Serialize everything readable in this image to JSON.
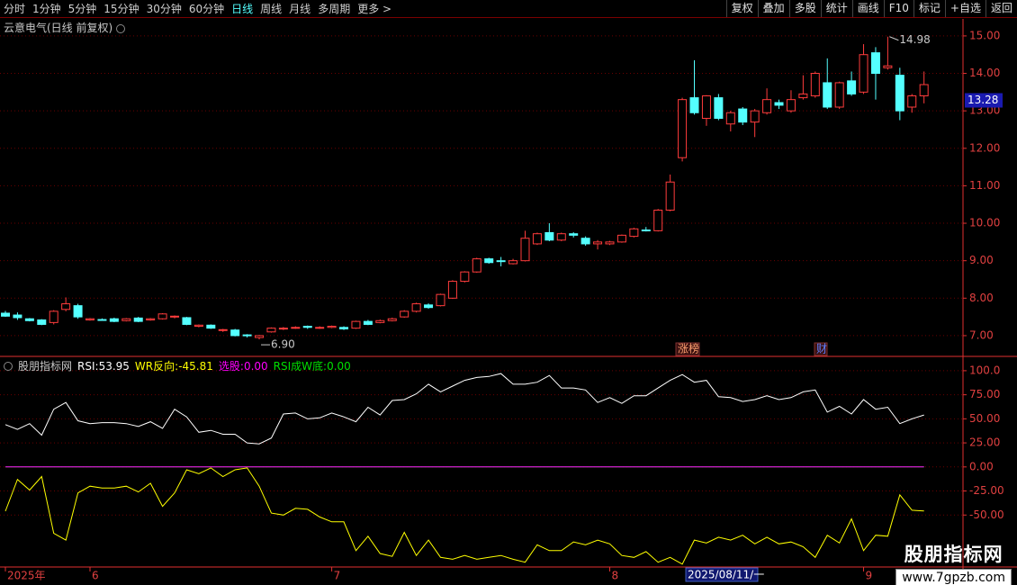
{
  "toolbar": {
    "periods": [
      "分时",
      "1分钟",
      "5分钟",
      "15分钟",
      "30分钟",
      "60分钟",
      "日线",
      "周线",
      "月线",
      "多周期",
      "更多 >"
    ],
    "active_index": 6,
    "tools": [
      "复权",
      "叠加",
      "多股",
      "统计",
      "画线",
      "F10",
      "标记",
      "+自选",
      "返回"
    ]
  },
  "watermark": {
    "title": "股朋指标网",
    "url": "www.7gpzb.com"
  },
  "chart_data": [
    {
      "type": "candlestick",
      "title": "云意电气(日线 前复权)",
      "up_color": "#ff3c3c",
      "down_color": "#54ffff",
      "categories": [
        "2025年",
        null,
        null,
        null,
        null,
        null,
        null,
        "6",
        null,
        null,
        null,
        null,
        null,
        null,
        null,
        null,
        null,
        null,
        null,
        null,
        null,
        null,
        null,
        null,
        null,
        null,
        null,
        "7",
        null,
        null,
        null,
        null,
        null,
        null,
        null,
        null,
        null,
        null,
        null,
        null,
        null,
        null,
        null,
        null,
        null,
        null,
        null,
        null,
        null,
        null,
        "8",
        null,
        null,
        null,
        null,
        null,
        null,
        null,
        null,
        null,
        null,
        null,
        null,
        null,
        null,
        null,
        null,
        null,
        null,
        null,
        null,
        "9",
        null,
        null,
        null,
        null,
        null
      ],
      "open": [
        7.6,
        7.55,
        7.45,
        7.42,
        7.35,
        7.7,
        7.8,
        7.42,
        7.43,
        7.45,
        7.4,
        7.47,
        7.42,
        7.45,
        7.5,
        7.48,
        7.25,
        7.28,
        7.15,
        7.15,
        7.02,
        6.95,
        7.1,
        7.18,
        7.2,
        7.25,
        7.2,
        7.22,
        7.22,
        7.2,
        7.38,
        7.35,
        7.4,
        7.5,
        7.65,
        7.82,
        7.8,
        8.0,
        8.45,
        8.7,
        9.05,
        9.0,
        8.92,
        9.0,
        9.45,
        9.75,
        9.55,
        9.72,
        9.6,
        9.45,
        9.45,
        9.5,
        9.65,
        9.82,
        9.8,
        10.35,
        11.75,
        13.35,
        12.8,
        13.35,
        12.65,
        13.05,
        12.7,
        12.95,
        13.22,
        13.0,
        13.35,
        13.4,
        13.75,
        13.1,
        13.8,
        13.5,
        14.55,
        14.15,
        13.95,
        13.1,
        13.4
      ],
      "high": [
        7.66,
        7.62,
        7.47,
        7.44,
        7.68,
        8.02,
        7.85,
        7.47,
        7.46,
        7.48,
        7.47,
        7.5,
        7.47,
        7.6,
        7.54,
        7.5,
        7.3,
        7.3,
        7.18,
        7.18,
        7.04,
        7.02,
        7.22,
        7.23,
        7.25,
        7.27,
        7.25,
        7.27,
        7.25,
        7.4,
        7.42,
        7.43,
        7.48,
        7.68,
        7.88,
        7.86,
        8.12,
        8.48,
        8.72,
        9.08,
        9.08,
        9.1,
        9.05,
        9.8,
        9.75,
        10.0,
        9.75,
        9.76,
        9.65,
        9.55,
        9.53,
        9.7,
        9.88,
        9.9,
        10.38,
        11.3,
        13.35,
        14.35,
        13.42,
        13.45,
        13.0,
        13.1,
        13.05,
        13.6,
        13.3,
        13.55,
        13.95,
        14.05,
        14.4,
        13.78,
        14.05,
        14.78,
        14.7,
        14.98,
        14.15,
        13.45,
        14.05
      ],
      "low": [
        7.5,
        7.42,
        7.38,
        7.28,
        7.3,
        7.65,
        7.45,
        7.4,
        7.4,
        7.36,
        7.38,
        7.36,
        7.4,
        7.43,
        7.46,
        7.28,
        7.22,
        7.18,
        7.1,
        6.98,
        6.95,
        6.9,
        7.08,
        7.15,
        7.18,
        7.18,
        7.18,
        7.2,
        7.15,
        7.18,
        7.28,
        7.33,
        7.38,
        7.48,
        7.62,
        7.72,
        7.78,
        7.98,
        8.42,
        8.68,
        8.92,
        8.85,
        8.9,
        8.98,
        9.42,
        9.52,
        9.52,
        9.62,
        9.4,
        9.3,
        9.42,
        9.48,
        9.62,
        9.78,
        9.78,
        10.32,
        11.65,
        12.9,
        12.6,
        12.75,
        12.45,
        12.62,
        12.3,
        12.9,
        13.05,
        12.95,
        13.3,
        13.35,
        13.05,
        13.05,
        13.4,
        13.45,
        13.3,
        14.1,
        12.75,
        12.95,
        13.2
      ],
      "close": [
        7.52,
        7.48,
        7.4,
        7.3,
        7.65,
        7.85,
        7.5,
        7.45,
        7.42,
        7.38,
        7.45,
        7.38,
        7.45,
        7.58,
        7.52,
        7.3,
        7.28,
        7.2,
        7.16,
        7.0,
        7.0,
        7.0,
        7.2,
        7.2,
        7.22,
        7.22,
        7.22,
        7.25,
        7.18,
        7.38,
        7.3,
        7.4,
        7.45,
        7.65,
        7.85,
        7.75,
        8.1,
        8.45,
        8.7,
        9.05,
        8.95,
        8.98,
        9.0,
        9.6,
        9.72,
        9.55,
        9.72,
        9.68,
        9.45,
        9.5,
        9.5,
        9.68,
        9.85,
        9.8,
        10.35,
        11.1,
        13.3,
        12.95,
        13.4,
        12.8,
        12.95,
        12.7,
        13.0,
        13.3,
        13.15,
        13.3,
        13.45,
        14.0,
        13.1,
        13.75,
        13.45,
        14.5,
        14.0,
        14.2,
        13.0,
        13.4,
        13.7
      ],
      "ylim": [
        6.47,
        15.43
      ],
      "yticks": [
        {
          "value": 7,
          "label": "7.00"
        },
        {
          "value": 8,
          "label": "8.00"
        },
        {
          "value": 9,
          "label": "9.00"
        },
        {
          "value": 10,
          "label": "10.00"
        },
        {
          "value": 11,
          "label": "11.00"
        },
        {
          "value": 12,
          "label": "12.00"
        },
        {
          "value": 13,
          "label": "13.00"
        },
        {
          "value": 14,
          "label": "14.00"
        },
        {
          "value": 15,
          "label": "15.00"
        }
      ],
      "grid": true,
      "extreme_labels": [
        {
          "value": 6.9,
          "label": "6.90"
        },
        {
          "value": 14.98,
          "label": "14.98"
        }
      ],
      "price_tag": {
        "value": 13.28,
        "label": "13.28"
      },
      "badges": [
        "涨榜",
        "财"
      ],
      "cursor_date": "2025/08/11/一"
    },
    {
      "type": "line",
      "title": "股朋指标网",
      "ylim": [
        -104,
        113
      ],
      "yticks": [
        {
          "value": 100,
          "label": "100.0"
        },
        {
          "value": 75,
          "label": "75.00"
        },
        {
          "value": 50,
          "label": "50.00"
        },
        {
          "value": 25,
          "label": "25.00"
        },
        {
          "value": 0,
          "label": "0.00"
        },
        {
          "value": -25,
          "label": "-25.00"
        },
        {
          "value": -50,
          "label": "-50.00"
        }
      ],
      "series": [
        {
          "name": "RSI",
          "color": "#ffffff",
          "values": [
            44,
            39,
            45,
            33,
            60,
            67,
            48,
            45,
            46,
            46,
            45,
            42,
            47,
            40,
            60,
            52,
            36,
            38,
            34,
            34,
            25,
            24,
            30,
            55,
            56,
            50,
            51,
            56,
            52,
            47,
            62,
            54,
            69,
            70,
            76,
            86,
            78,
            84,
            90,
            93,
            94,
            97,
            86,
            86,
            88,
            95,
            82,
            82,
            80,
            67,
            72,
            66,
            74,
            74,
            82,
            90,
            96,
            88,
            90,
            73,
            72,
            68,
            70,
            74,
            70,
            72,
            78,
            80,
            57,
            63,
            55,
            70,
            60,
            62,
            45,
            50,
            53.95
          ]
        },
        {
          "name": "WR反向",
          "color": "#ffff00",
          "values": [
            -46,
            -13,
            -24,
            -10,
            -69,
            -76,
            -27,
            -20,
            -22,
            -22,
            -20,
            -26,
            -17,
            -41,
            -27,
            -3,
            -7,
            -1,
            -10,
            -3,
            -1,
            -20,
            -48,
            -50,
            -43,
            -44,
            -52,
            -57,
            -57,
            -87,
            -72,
            -90,
            -93,
            -68,
            -92,
            -76,
            -94,
            -96,
            -92,
            -96,
            -94,
            -92,
            -96,
            -99,
            -81,
            -87,
            -87,
            -78,
            -81,
            -76,
            -80,
            -92,
            -94,
            -88,
            -99,
            -94,
            -101,
            -76,
            -79,
            -73,
            -76,
            -71,
            -80,
            -73,
            -80,
            -78,
            -83,
            -94,
            -71,
            -79,
            -54,
            -87,
            -71,
            -72,
            -29,
            -45,
            -45.81
          ]
        },
        {
          "name": "选股",
          "color": "#ff00ff",
          "values": [
            0,
            0,
            0,
            0,
            0,
            0,
            0,
            0,
            0,
            0,
            0,
            0,
            0,
            0,
            0,
            0,
            0,
            0,
            0,
            0,
            0,
            0,
            0,
            0,
            0,
            0,
            0,
            0,
            0,
            0,
            0,
            0,
            0,
            0,
            0,
            0,
            0,
            0,
            0,
            0,
            0,
            0,
            0,
            0,
            0,
            0,
            0,
            0,
            0,
            0,
            0,
            0,
            0,
            0,
            0,
            0,
            0,
            0,
            0,
            0,
            0,
            0,
            0,
            0,
            0,
            0,
            0,
            0,
            0,
            0,
            0,
            0,
            0,
            0,
            0,
            0,
            0
          ],
          "value_labels": [
            null,
            null,
            null,
            null,
            null,
            null,
            null,
            null,
            null,
            null,
            null,
            null,
            null,
            null,
            null,
            null,
            null,
            null,
            null,
            null,
            null,
            null,
            null,
            null,
            null,
            null,
            null,
            null,
            null,
            null,
            null,
            null,
            null,
            null,
            null,
            null,
            null,
            null,
            null,
            null,
            null,
            null,
            null,
            null,
            null,
            null,
            null,
            null,
            null,
            null,
            null,
            null,
            null,
            null,
            null,
            null,
            null,
            null,
            null,
            null,
            null,
            null,
            null,
            null,
            null,
            null,
            null,
            null,
            null,
            null,
            null,
            null,
            null,
            null,
            null,
            null,
            "0.00"
          ]
        },
        {
          "name": "RSI成W底",
          "color": "#00e000",
          "values": [
            0,
            0,
            0,
            0,
            0,
            0,
            0,
            0,
            0,
            0,
            0,
            0,
            0,
            0,
            0,
            0,
            0,
            0,
            0,
            0,
            0,
            0,
            0,
            0,
            0,
            0,
            0,
            0,
            0,
            0,
            0,
            0,
            0,
            0,
            0,
            0,
            0,
            0,
            0,
            0,
            0,
            0,
            0,
            0,
            0,
            0,
            0,
            0,
            0,
            0,
            0,
            0,
            0,
            0,
            0,
            0,
            0,
            0,
            0,
            0,
            0,
            0,
            0,
            0,
            0,
            0,
            0,
            0,
            0,
            0,
            0,
            0,
            0,
            0,
            0,
            0,
            0
          ],
          "value_labels": [
            null,
            null,
            null,
            null,
            null,
            null,
            null,
            null,
            null,
            null,
            null,
            null,
            null,
            null,
            null,
            null,
            null,
            null,
            null,
            null,
            null,
            null,
            null,
            null,
            null,
            null,
            null,
            null,
            null,
            null,
            null,
            null,
            null,
            null,
            null,
            null,
            null,
            null,
            null,
            null,
            null,
            null,
            null,
            null,
            null,
            null,
            null,
            null,
            null,
            null,
            null,
            null,
            null,
            null,
            null,
            null,
            null,
            null,
            null,
            null,
            null,
            null,
            null,
            null,
            null,
            null,
            null,
            null,
            null,
            null,
            null,
            null,
            null,
            null,
            null,
            null,
            "0.00"
          ]
        }
      ],
      "grid": true
    }
  ]
}
